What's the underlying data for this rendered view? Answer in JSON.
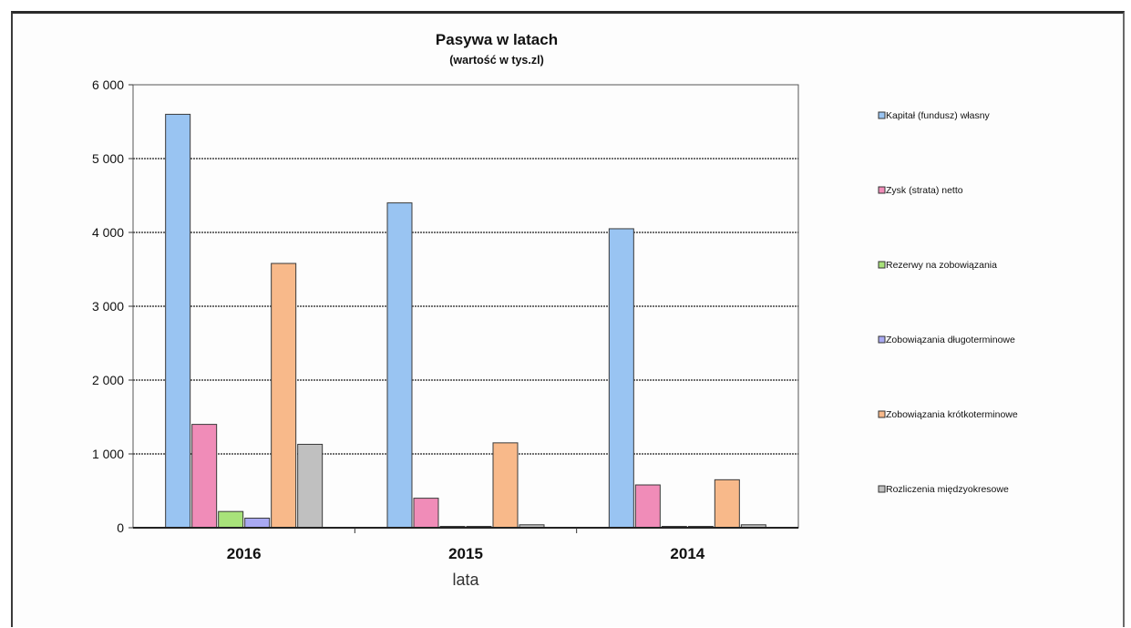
{
  "chart_data": {
    "type": "bar",
    "title": "Pasywa w latach",
    "subtitle": "(wartość w tys.zl)",
    "xlabel": "lata",
    "ylabel": "",
    "categories": [
      "2016",
      "2015",
      "2014"
    ],
    "ylim": [
      0,
      6000
    ],
    "yticks": [
      0,
      1000,
      2000,
      3000,
      4000,
      5000,
      6000
    ],
    "ytick_labels": [
      "0",
      "1 000",
      "2 000",
      "3 000",
      "4 000",
      "5 000",
      "6 000"
    ],
    "grid": true,
    "legend_position": "right",
    "series": [
      {
        "name": "Kapitał (fundusz) własny",
        "color": "#99c4f2",
        "values": [
          5600,
          4400,
          4050
        ]
      },
      {
        "name": "Zysk (strata) netto",
        "color": "#f08cb8",
        "values": [
          1400,
          400,
          580
        ]
      },
      {
        "name": "Rezerwy na zobowiązania",
        "color": "#a8e27a",
        "values": [
          220,
          0,
          0
        ]
      },
      {
        "name": "Zobowiązania długoterminowe",
        "color": "#a9a9f2",
        "values": [
          130,
          0,
          0
        ]
      },
      {
        "name": "Zobowiązania krótkoterminowe",
        "color": "#f8b98a",
        "values": [
          3580,
          1150,
          650
        ]
      },
      {
        "name": "Rozliczenia międzyokresowe",
        "color": "#c0c0c0",
        "values": [
          1130,
          40,
          40
        ]
      }
    ]
  }
}
